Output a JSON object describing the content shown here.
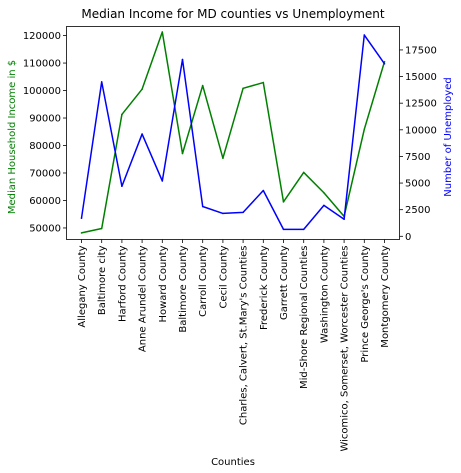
{
  "chart_data": {
    "type": "line",
    "title": "Median Income for MD counties vs Unemployment",
    "xlabel": "Counties",
    "ylabel_left": "Median Household Income in $",
    "ylabel_right": "Number of Unemployed",
    "categories": [
      "Allegany County",
      "Baltimore city",
      "Harford County",
      "Anne Arundel County",
      "Howard County",
      "Baltimore County",
      "Carroll County",
      "Cecil County",
      "Charles, Calvert, St.Mary's Counties",
      "Frederick County",
      "Garrett County",
      "Mid-Shore Regional Counties",
      "Washington County",
      "Wicomico, Somerset, Worcester Counties",
      "Prince George's County",
      "Montgomery County"
    ],
    "series": [
      {
        "axis": "left",
        "color": "#008000",
        "values": [
          48200,
          49800,
          91300,
          100500,
          121300,
          77100,
          101800,
          75400,
          100800,
          102900,
          59500,
          70200,
          62800,
          54200,
          85900,
          110500
        ]
      },
      {
        "axis": "right",
        "color": "#0000ff",
        "values": [
          1700,
          14500,
          4700,
          9600,
          5200,
          16600,
          2800,
          2150,
          2250,
          4300,
          650,
          650,
          2900,
          1600,
          18900,
          16200
        ]
      }
    ],
    "ylim_left": [
      45800,
      123300
    ],
    "yticks_left": [
      50000,
      60000,
      70000,
      80000,
      90000,
      100000,
      110000,
      120000
    ],
    "ylim_right": [
      -300,
      19700
    ],
    "yticks_right": [
      0,
      2500,
      5000,
      7500,
      10000,
      12500,
      15000,
      17500
    ],
    "grid": false,
    "legend": "none"
  }
}
